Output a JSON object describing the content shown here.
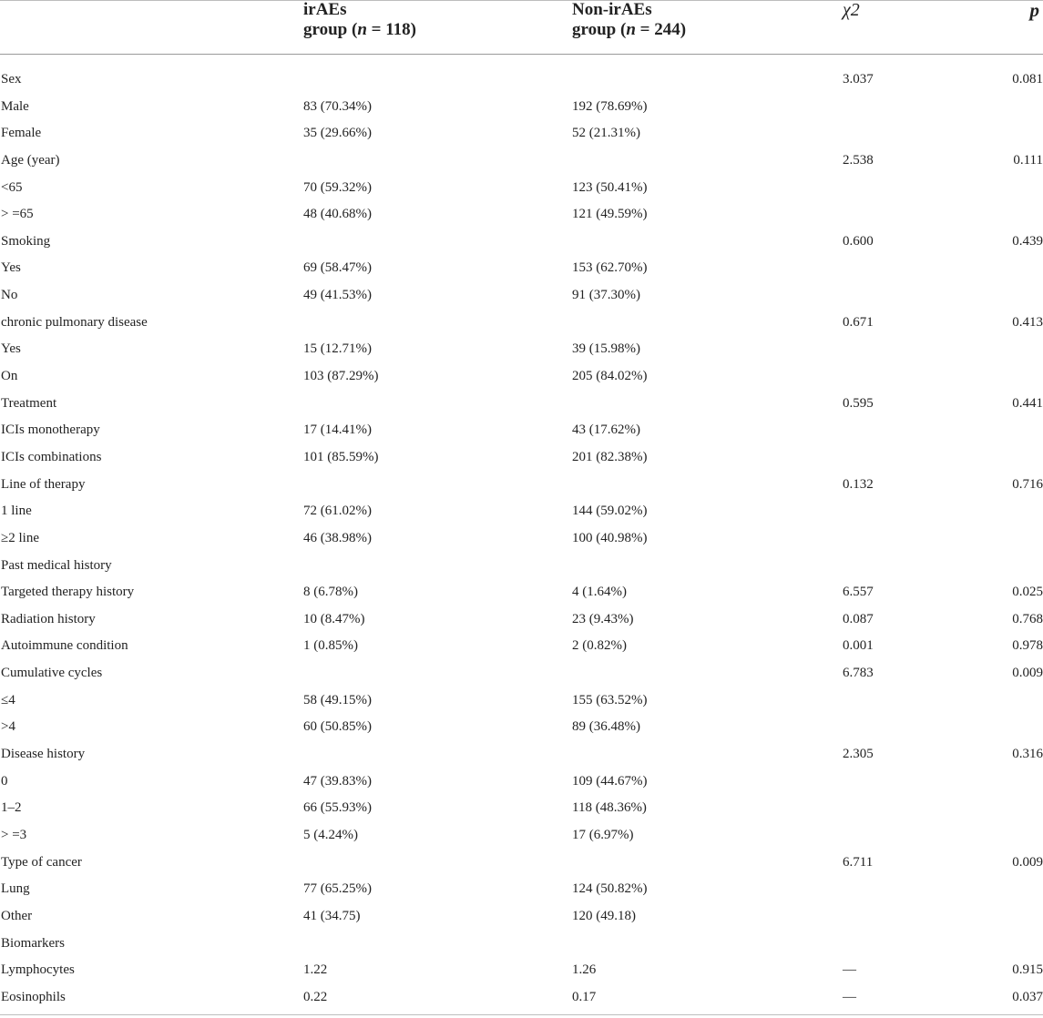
{
  "table": {
    "headers": {
      "col1_line1": "irAEs",
      "col1_line2_pre": "group (",
      "col1_n": "n",
      "col1_line2_post": " = 118)",
      "col2_line1": "Non-irAEs",
      "col2_line2_pre": "group (",
      "col2_n": "n",
      "col2_line2_post": " = 244)",
      "chi": "χ2",
      "p": "p"
    },
    "rows": [
      {
        "label": "Sex",
        "v1": "",
        "v2": "",
        "chi": "3.037",
        "p": "0.081"
      },
      {
        "label": "Male",
        "v1": "83 (70.34%)",
        "v2": "192 (78.69%)",
        "chi": "",
        "p": ""
      },
      {
        "label": "Female",
        "v1": "35 (29.66%)",
        "v2": "52 (21.31%)",
        "chi": "",
        "p": ""
      },
      {
        "label": "Age (year)",
        "v1": "",
        "v2": "",
        "chi": "2.538",
        "p": "0.111"
      },
      {
        "label": "<65",
        "v1": "70 (59.32%)",
        "v2": "123 (50.41%)",
        "chi": "",
        "p": ""
      },
      {
        "label": "> =65",
        "v1": "48 (40.68%)",
        "v2": "121 (49.59%)",
        "chi": "",
        "p": ""
      },
      {
        "label": "Smoking",
        "v1": "",
        "v2": "",
        "chi": "0.600",
        "p": "0.439"
      },
      {
        "label": "Yes",
        "v1": "69 (58.47%)",
        "v2": "153 (62.70%)",
        "chi": "",
        "p": ""
      },
      {
        "label": "No",
        "v1": "49 (41.53%)",
        "v2": "91 (37.30%)",
        "chi": "",
        "p": ""
      },
      {
        "label": "chronic pulmonary disease",
        "v1": "",
        "v2": "",
        "chi": "0.671",
        "p": "0.413"
      },
      {
        "label": "Yes",
        "v1": "15 (12.71%)",
        "v2": "39 (15.98%)",
        "chi": "",
        "p": ""
      },
      {
        "label": "On",
        "v1": "103 (87.29%)",
        "v2": "205 (84.02%)",
        "chi": "",
        "p": ""
      },
      {
        "label": "Treatment",
        "v1": "",
        "v2": "",
        "chi": "0.595",
        "p": "0.441"
      },
      {
        "label": "ICIs monotherapy",
        "v1": "17 (14.41%)",
        "v2": "43 (17.62%)",
        "chi": "",
        "p": ""
      },
      {
        "label": "ICIs combinations",
        "v1": "101 (85.59%)",
        "v2": "201 (82.38%)",
        "chi": "",
        "p": ""
      },
      {
        "label": "Line of therapy",
        "v1": "",
        "v2": "",
        "chi": "0.132",
        "p": "0.716"
      },
      {
        "label": "1 line",
        "v1": "72 (61.02%)",
        "v2": "144 (59.02%)",
        "chi": "",
        "p": ""
      },
      {
        "label": "≥2 line",
        "v1": "46 (38.98%)",
        "v2": "100 (40.98%)",
        "chi": "",
        "p": ""
      },
      {
        "label": "Past medical history",
        "v1": "",
        "v2": "",
        "chi": "",
        "p": ""
      },
      {
        "label": "Targeted therapy history",
        "v1": "8 (6.78%)",
        "v2": "4 (1.64%)",
        "chi": "6.557",
        "p": "0.025"
      },
      {
        "label": "Radiation history",
        "v1": "10 (8.47%)",
        "v2": "23 (9.43%)",
        "chi": "0.087",
        "p": "0.768"
      },
      {
        "label": "Autoimmune condition",
        "v1": "1 (0.85%)",
        "v2": "2 (0.82%)",
        "chi": "0.001",
        "p": "0.978"
      },
      {
        "label": "Cumulative cycles",
        "v1": "",
        "v2": "",
        "chi": "6.783",
        "p": "0.009"
      },
      {
        "label": "≤4",
        "v1": "58 (49.15%)",
        "v2": "155 (63.52%)",
        "chi": "",
        "p": ""
      },
      {
        "label": ">4",
        "v1": "60 (50.85%)",
        "v2": "89 (36.48%)",
        "chi": "",
        "p": ""
      },
      {
        "label": "Disease history",
        "v1": "",
        "v2": "",
        "chi": "2.305",
        "p": "0.316"
      },
      {
        "label": "0",
        "v1": "47 (39.83%)",
        "v2": "109 (44.67%)",
        "chi": "",
        "p": ""
      },
      {
        "label": "1–2",
        "v1": "66 (55.93%)",
        "v2": "118 (48.36%)",
        "chi": "",
        "p": ""
      },
      {
        "label": "> =3",
        "v1": "5 (4.24%)",
        "v2": "17 (6.97%)",
        "chi": "",
        "p": ""
      },
      {
        "label": "Type of cancer",
        "v1": "",
        "v2": "",
        "chi": "6.711",
        "p": "0.009"
      },
      {
        "label": "Lung",
        "v1": "77 (65.25%)",
        "v2": "124 (50.82%)",
        "chi": "",
        "p": ""
      },
      {
        "label": "Other",
        "v1": "41 (34.75)",
        "v2": "120 (49.18)",
        "chi": "",
        "p": ""
      },
      {
        "label": "Biomarkers",
        "v1": "",
        "v2": "",
        "chi": "",
        "p": ""
      },
      {
        "label": "Lymphocytes",
        "v1": "1.22",
        "v2": "1.26",
        "chi": "—",
        "p": "0.915"
      },
      {
        "label": "Eosinophils",
        "v1": "0.22",
        "v2": "0.17",
        "chi": "—",
        "p": "0.037"
      }
    ]
  }
}
